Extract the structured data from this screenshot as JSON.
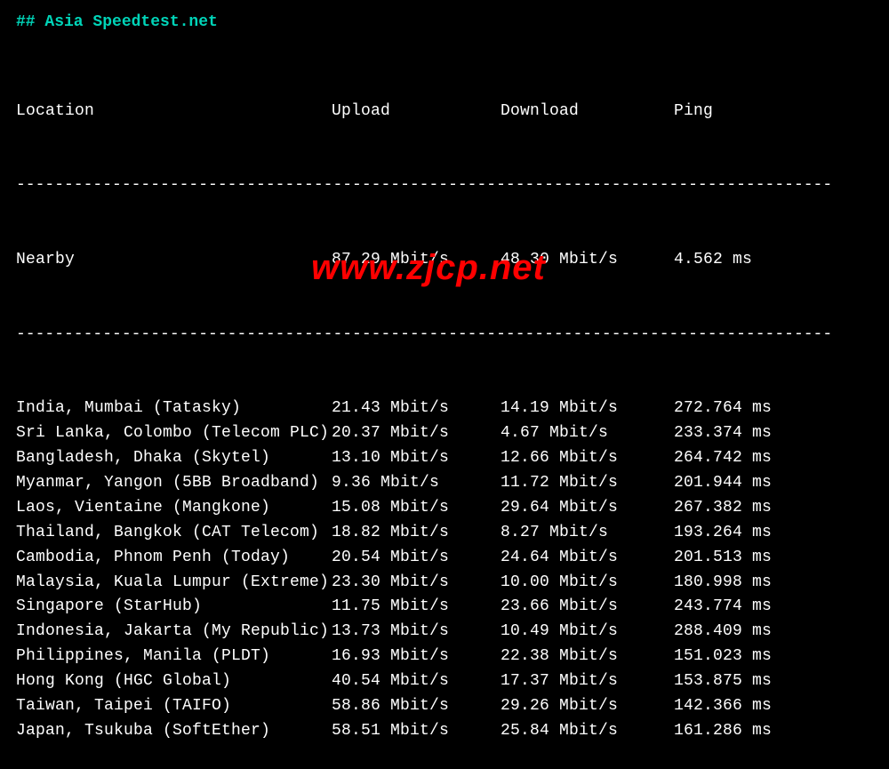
{
  "title": "## Asia Speedtest.net",
  "headers": {
    "location": "Location",
    "upload": "Upload",
    "download": "Download",
    "ping": "Ping"
  },
  "divider": "-------------------------------------------------------------------------------------",
  "nearby": {
    "location": "Nearby",
    "upload": "87.29 Mbit/s",
    "download": "48.30 Mbit/s",
    "ping": "4.562 ms"
  },
  "rows": [
    {
      "location": "India, Mumbai (Tatasky)",
      "upload": "21.43 Mbit/s",
      "download": "14.19 Mbit/s",
      "ping": "272.764 ms"
    },
    {
      "location": "Sri Lanka, Colombo (Telecom PLC)",
      "upload": "20.37 Mbit/s",
      "download": "4.67 Mbit/s",
      "ping": "233.374 ms"
    },
    {
      "location": "Bangladesh, Dhaka (Skytel)",
      "upload": "13.10 Mbit/s",
      "download": "12.66 Mbit/s",
      "ping": "264.742 ms"
    },
    {
      "location": "Myanmar, Yangon (5BB Broadband)",
      "upload": "9.36 Mbit/s",
      "download": "11.72 Mbit/s",
      "ping": "201.944 ms"
    },
    {
      "location": "Laos, Vientaine (Mangkone)",
      "upload": "15.08 Mbit/s",
      "download": "29.64 Mbit/s",
      "ping": "267.382 ms"
    },
    {
      "location": "Thailand, Bangkok (CAT Telecom)",
      "upload": "18.82 Mbit/s",
      "download": "8.27 Mbit/s",
      "ping": "193.264 ms"
    },
    {
      "location": "Cambodia, Phnom Penh (Today)",
      "upload": "20.54 Mbit/s",
      "download": "24.64 Mbit/s",
      "ping": "201.513 ms"
    },
    {
      "location": "Malaysia, Kuala Lumpur (Extreme)",
      "upload": "23.30 Mbit/s",
      "download": "10.00 Mbit/s",
      "ping": "180.998 ms"
    },
    {
      "location": "Singapore (StarHub)",
      "upload": "11.75 Mbit/s",
      "download": "23.66 Mbit/s",
      "ping": "243.774 ms"
    },
    {
      "location": "Indonesia, Jakarta (My Republic)",
      "upload": "13.73 Mbit/s",
      "download": "10.49 Mbit/s",
      "ping": "288.409 ms"
    },
    {
      "location": "Philippines, Manila (PLDT)",
      "upload": "16.93 Mbit/s",
      "download": "22.38 Mbit/s",
      "ping": "151.023 ms"
    },
    {
      "location": "Hong Kong (HGC Global)",
      "upload": "40.54 Mbit/s",
      "download": "17.37 Mbit/s",
      "ping": "153.875 ms"
    },
    {
      "location": "Taiwan, Taipei (TAIFO)",
      "upload": "58.86 Mbit/s",
      "download": "29.26 Mbit/s",
      "ping": "142.366 ms"
    },
    {
      "location": "Japan, Tsukuba (SoftEther)",
      "upload": "58.51 Mbit/s",
      "download": "25.84 Mbit/s",
      "ping": "161.286 ms"
    }
  ],
  "watermark": "www.zjcp.net",
  "colors": {
    "background": "#000000",
    "text": "#ffffff",
    "title": "#00d4b8",
    "watermark": "#ff0000"
  }
}
